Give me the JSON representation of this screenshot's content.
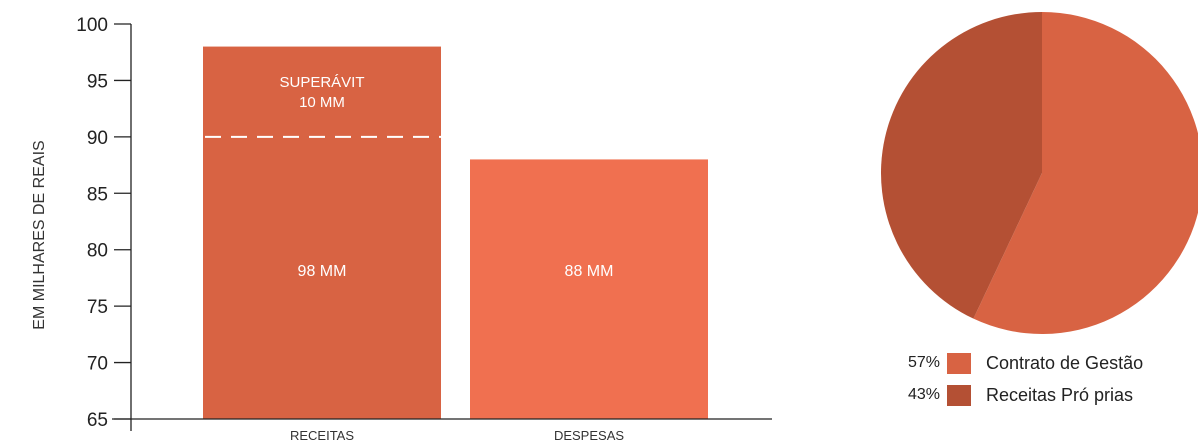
{
  "bar_chart_ylabel": "EM MILHARES DE REAIS",
  "colors": {
    "receitas": "#d86343",
    "despesas": "#f07050",
    "pie_contrato": "#d86343",
    "pie_proprias": "#b45034",
    "axis": "#222222",
    "bar_text": "#ffffff",
    "legend_text": "#222222"
  },
  "chart_data": [
    {
      "type": "bar",
      "categories": [
        "RECEITAS",
        "DESPESAS"
      ],
      "values": [
        98,
        88
      ],
      "value_labels": [
        "98 MM",
        "88 MM"
      ],
      "ylabel": "EM MILHARES DE REAIS",
      "ylim": [
        65,
        100
      ],
      "yticks": [
        65,
        70,
        75,
        80,
        85,
        90,
        95,
        100
      ],
      "annotation": {
        "category": "RECEITAS",
        "line_value": 90,
        "line_style": "dashed",
        "text": [
          "SUPERÁVIT",
          "10 MM"
        ]
      },
      "grid": false
    },
    {
      "type": "pie",
      "slices": [
        {
          "label": "Contrato de Gestão",
          "value": 57,
          "pct_label": "57%"
        },
        {
          "label": "Receitas Pró prias",
          "value": 43,
          "pct_label": "43%"
        }
      ],
      "legend_position": "bottom"
    }
  ]
}
